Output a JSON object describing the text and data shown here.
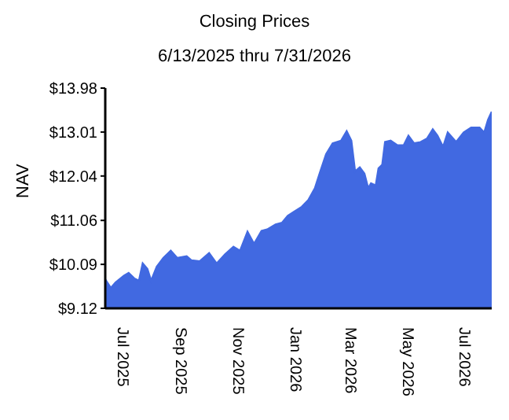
{
  "chart_data": {
    "type": "area",
    "title": "Closing Prices",
    "subtitle": "6/13/2025 thru 7/31/2026",
    "ylabel": "NAV",
    "x": [
      "2025-06-13",
      "2025-06-19",
      "2025-06-24",
      "2025-07-03",
      "2025-07-08",
      "2025-07-14",
      "2025-07-19",
      "2025-07-23",
      "2025-07-28",
      "2025-08-01",
      "2025-08-07",
      "2025-08-14",
      "2025-08-22",
      "2025-08-29",
      "2025-09-08",
      "2025-09-13",
      "2025-09-22",
      "2025-10-02",
      "2025-10-10",
      "2025-10-19",
      "2025-10-28",
      "2025-11-04",
      "2025-11-12",
      "2025-11-19",
      "2025-11-27",
      "2025-12-03",
      "2025-12-12",
      "2025-12-19",
      "2025-12-25",
      "2025-12-31",
      "2026-01-09",
      "2026-01-16",
      "2026-01-23",
      "2026-01-28",
      "2026-02-04",
      "2026-02-11",
      "2026-02-20",
      "2026-02-26",
      "2026-03-03",
      "2026-03-07",
      "2026-03-12",
      "2026-03-17",
      "2026-03-21",
      "2026-03-24",
      "2026-03-29",
      "2026-04-01",
      "2026-04-05",
      "2026-04-08",
      "2026-04-14",
      "2026-04-21",
      "2026-04-28",
      "2026-05-03",
      "2026-05-09",
      "2026-05-16",
      "2026-05-23",
      "2026-05-29",
      "2026-06-03",
      "2026-06-09",
      "2026-06-14",
      "2026-06-23",
      "2026-07-01",
      "2026-07-09",
      "2026-07-18",
      "2026-07-23",
      "2026-07-27",
      "2026-07-31"
    ],
    "series": [
      {
        "color": "#4169e1",
        "values": [
          9.76,
          9.57,
          9.69,
          9.84,
          9.9,
          9.78,
          9.73,
          10.11,
          9.99,
          9.73,
          10.04,
          10.23,
          10.39,
          10.23,
          10.27,
          10.18,
          10.16,
          10.34,
          10.11,
          10.31,
          10.48,
          10.39,
          10.81,
          10.54,
          10.83,
          10.86,
          10.97,
          11.01,
          11.16,
          11.24,
          11.36,
          11.51,
          11.77,
          12.09,
          12.52,
          12.76,
          12.82,
          13.03,
          12.82,
          12.14,
          12.23,
          12.09,
          11.77,
          11.88,
          11.83,
          12.21,
          12.29,
          12.79,
          12.82,
          12.72,
          12.72,
          12.93,
          12.76,
          12.79,
          12.87,
          13.07,
          12.93,
          12.68,
          13.0,
          12.79,
          13.0,
          13.11,
          13.11,
          13.0,
          13.28,
          13.46
        ]
      }
    ],
    "xlim": [
      "2025-06-13",
      "2026-07-31"
    ],
    "xticks": [
      {
        "value": "2025-07-01",
        "label": "Jul 2025"
      },
      {
        "value": "2025-09-01",
        "label": "Sep 2025"
      },
      {
        "value": "2025-11-01",
        "label": "Nov 2025"
      },
      {
        "value": "2026-01-01",
        "label": "Jan 2026"
      },
      {
        "value": "2026-03-01",
        "label": "Mar 2026"
      },
      {
        "value": "2026-05-01",
        "label": "May 2026"
      },
      {
        "value": "2026-07-01",
        "label": "Jul 2026"
      }
    ],
    "ylim": [
      9.12,
      13.98
    ],
    "yticks": [
      {
        "value": 9.12,
        "label": "$9.12"
      },
      {
        "value": 10.09,
        "label": "$10.09"
      },
      {
        "value": 11.06,
        "label": "$11.06"
      },
      {
        "value": 12.04,
        "label": "$12.04"
      },
      {
        "value": 13.01,
        "label": "$13.01"
      },
      {
        "value": 13.98,
        "label": "$13.98"
      }
    ],
    "grid": false,
    "legend": false
  }
}
